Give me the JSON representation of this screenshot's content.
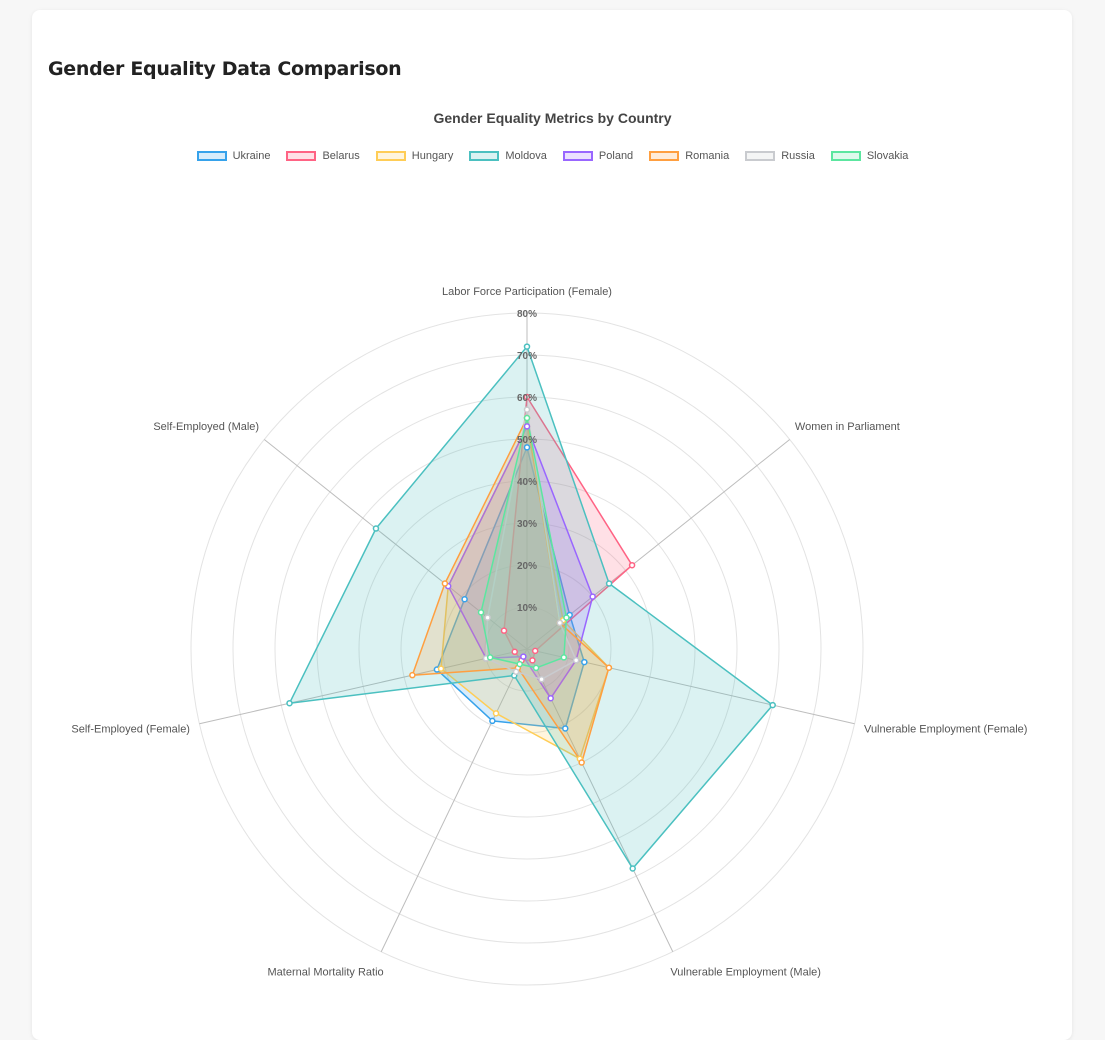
{
  "page": {
    "title": "Gender Equality Data Comparison"
  },
  "chart_data": {
    "type": "radar",
    "title": "Gender Equality Metrics by Country",
    "axes": [
      "Labor Force Participation (Female)",
      "Women in Parliament",
      "Vulnerable Employment (Female)",
      "Vulnerable Employment (Male)",
      "Maternal Mortality Ratio",
      "Self-Employed (Female)",
      "Self-Employed (Male)"
    ],
    "r_range": [
      0,
      80
    ],
    "ticks": [
      "10%",
      "20%",
      "30%",
      "40%",
      "50%",
      "60%",
      "70%",
      "80%"
    ],
    "legend_position": "top",
    "series": [
      {
        "name": "Ukraine",
        "color": "#36a2eb",
        "values": [
          48,
          13,
          14,
          21,
          19,
          22,
          19
        ]
      },
      {
        "name": "Belarus",
        "color": "#ff6384",
        "values": [
          60,
          32,
          2,
          3,
          3,
          3,
          7
        ]
      },
      {
        "name": "Hungary",
        "color": "#ffcd56",
        "values": [
          53,
          11,
          20,
          29,
          17,
          21,
          24
        ]
      },
      {
        "name": "Moldova",
        "color": "#4bc0c0",
        "values": [
          72,
          25,
          60,
          58,
          7,
          58,
          46
        ]
      },
      {
        "name": "Poland",
        "color": "#9966ff",
        "values": [
          53,
          20,
          12,
          13,
          2,
          10,
          24
        ]
      },
      {
        "name": "Romania",
        "color": "#ff9f40",
        "values": [
          55,
          10,
          20,
          30,
          5,
          28,
          25
        ]
      },
      {
        "name": "Russia",
        "color": "#c9cbcf",
        "values": [
          57,
          10,
          12,
          8,
          6,
          10,
          12
        ]
      },
      {
        "name": "Slovakia",
        "color": "#5ce6a0",
        "values": [
          55,
          12,
          9,
          5,
          4,
          9,
          14
        ]
      }
    ]
  }
}
